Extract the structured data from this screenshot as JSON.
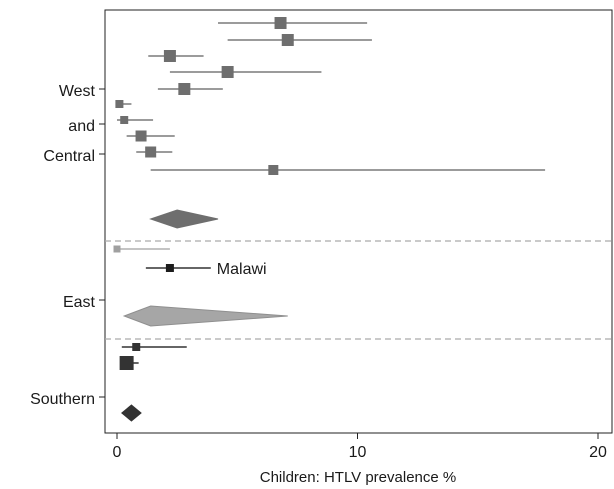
{
  "chart_data": {
    "type": "forest",
    "xlabel": "Children: HTLV prevalence %",
    "xlim": [
      -0.5,
      20.5
    ],
    "xticks": [
      "0",
      "10",
      "20"
    ],
    "xtick_values": [
      0,
      10,
      20
    ],
    "grid": false,
    "legend": "none",
    "colors": {
      "west": "#6e6e6e",
      "west_line": "#7a7a7a",
      "east_diamond": "#a6a6a6",
      "east_study": "#a0a0a0",
      "malawi": "#1c1c1c",
      "southern": "#333333",
      "separator": "#aaaaaa"
    },
    "regions": [
      {
        "key": "west",
        "label_lines": [
          "West",
          "and",
          "Central"
        ],
        "studies": [
          {
            "estimate": 6.8,
            "ci": [
              4.2,
              10.4
            ],
            "weight": 1.0
          },
          {
            "estimate": 7.1,
            "ci": [
              4.6,
              10.6
            ],
            "weight": 1.0
          },
          {
            "estimate": 2.2,
            "ci": [
              1.3,
              3.6
            ],
            "weight": 1.0
          },
          {
            "estimate": 4.6,
            "ci": [
              2.2,
              8.5
            ],
            "weight": 1.0
          },
          {
            "estimate": 2.8,
            "ci": [
              1.7,
              4.4
            ],
            "weight": 1.0
          },
          {
            "estimate": 0.1,
            "ci": [
              0.0,
              0.6
            ],
            "weight": 0.7
          },
          {
            "estimate": 0.3,
            "ci": [
              0.0,
              1.5
            ],
            "weight": 0.7
          },
          {
            "estimate": 1.0,
            "ci": [
              0.4,
              2.4
            ],
            "weight": 0.9
          },
          {
            "estimate": 1.4,
            "ci": [
              0.8,
              2.3
            ],
            "weight": 0.9
          },
          {
            "estimate": 6.5,
            "ci": [
              1.4,
              17.8
            ],
            "weight": 0.8
          }
        ],
        "pooled": {
          "estimate": 2.5,
          "ci": [
            1.4,
            4.2
          ]
        }
      },
      {
        "key": "east",
        "label_lines": [
          "East"
        ],
        "studies": [
          {
            "estimate": 0.0,
            "ci": [
              0.0,
              2.2
            ],
            "weight": 0.6
          },
          {
            "estimate": 2.2,
            "ci": [
              1.2,
              3.9
            ],
            "weight": 0.7,
            "label": "Malawi"
          }
        ],
        "pooled": {
          "estimate": 1.4,
          "ci": [
            0.3,
            7.1
          ]
        }
      },
      {
        "key": "southern",
        "label_lines": [
          "Southern"
        ],
        "studies": [
          {
            "estimate": 0.8,
            "ci": [
              0.2,
              2.9
            ],
            "weight": 0.7
          },
          {
            "estimate": 0.4,
            "ci": [
              0.2,
              0.9
            ],
            "weight": 1.2
          }
        ],
        "pooled": {
          "estimate": 0.6,
          "ci": [
            0.2,
            1.0
          ]
        }
      }
    ]
  }
}
